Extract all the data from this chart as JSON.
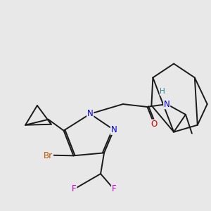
{
  "bg_color": "#e8e8e8",
  "bond_color": "#1a1a1a",
  "bond_lw": 1.4,
  "atom_colors": {
    "N": "#0000dd",
    "O": "#cc0000",
    "Br": "#bb5500",
    "F": "#cc00cc",
    "H": "#2a8a8a",
    "C": "#1a1a1a"
  },
  "font_size": 8.5
}
